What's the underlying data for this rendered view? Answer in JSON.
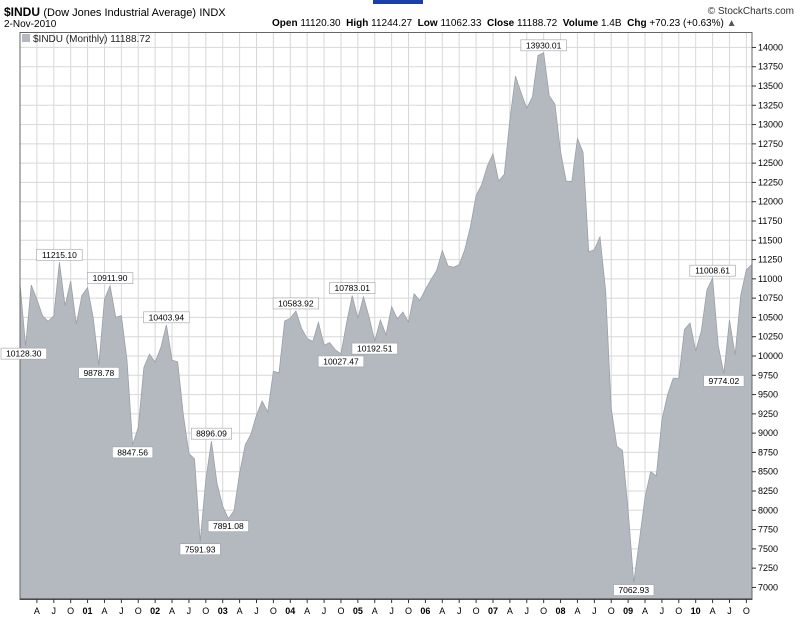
{
  "header": {
    "symbol": "$INDU",
    "name": "(Dow Jones Industrial Average)",
    "exchange": "INDX",
    "date": "2-Nov-2010",
    "logo": "© StockCharts.com",
    "open_label": "Open",
    "open_value": "11120.30",
    "high_label": "High",
    "high_value": "11244.27",
    "low_label": "Low",
    "low_value": "11062.33",
    "close_label": "Close",
    "close_value": "11188.72",
    "volume_label": "Volume",
    "volume_value": "1.4B",
    "chg_label": "Chg",
    "chg_value": "+70.23 (+0.63%)",
    "chg_arrow": "▲"
  },
  "colors": {
    "area": "#b4b9c0",
    "area_stroke": "#9aa0a8",
    "grid": "#d8d8d8",
    "topbar": "#1b3fa8"
  },
  "chart_data": {
    "type": "area",
    "legend": "$INDU (Monthly) 11188.72",
    "legend_position": "top-left",
    "ylim": [
      6850,
      14200
    ],
    "y_ticks": [
      7000,
      7250,
      7500,
      7750,
      8000,
      8250,
      8500,
      8750,
      9000,
      9250,
      9500,
      9750,
      10000,
      10250,
      10500,
      10750,
      11000,
      11250,
      11500,
      11750,
      12000,
      12250,
      12500,
      12750,
      13000,
      13250,
      13500,
      13750,
      14000
    ],
    "x_start": "2000-01",
    "x_ticks": [
      {
        "i": 3,
        "label": "A"
      },
      {
        "i": 6,
        "label": "J"
      },
      {
        "i": 9,
        "label": "O"
      },
      {
        "i": 12,
        "label": "01",
        "bold": true
      },
      {
        "i": 15,
        "label": "A"
      },
      {
        "i": 18,
        "label": "J"
      },
      {
        "i": 21,
        "label": "O"
      },
      {
        "i": 24,
        "label": "02",
        "bold": true
      },
      {
        "i": 27,
        "label": "A"
      },
      {
        "i": 30,
        "label": "J"
      },
      {
        "i": 33,
        "label": "O"
      },
      {
        "i": 36,
        "label": "03",
        "bold": true
      },
      {
        "i": 39,
        "label": "A"
      },
      {
        "i": 42,
        "label": "J"
      },
      {
        "i": 45,
        "label": "O"
      },
      {
        "i": 48,
        "label": "04",
        "bold": true
      },
      {
        "i": 51,
        "label": "A"
      },
      {
        "i": 54,
        "label": "J"
      },
      {
        "i": 57,
        "label": "O"
      },
      {
        "i": 60,
        "label": "05",
        "bold": true
      },
      {
        "i": 63,
        "label": "A"
      },
      {
        "i": 66,
        "label": "J"
      },
      {
        "i": 69,
        "label": "O"
      },
      {
        "i": 72,
        "label": "06",
        "bold": true
      },
      {
        "i": 75,
        "label": "A"
      },
      {
        "i": 78,
        "label": "J"
      },
      {
        "i": 81,
        "label": "O"
      },
      {
        "i": 84,
        "label": "07",
        "bold": true
      },
      {
        "i": 87,
        "label": "A"
      },
      {
        "i": 90,
        "label": "J"
      },
      {
        "i": 93,
        "label": "O"
      },
      {
        "i": 96,
        "label": "08",
        "bold": true
      },
      {
        "i": 99,
        "label": "A"
      },
      {
        "i": 102,
        "label": "J"
      },
      {
        "i": 105,
        "label": "O"
      },
      {
        "i": 108,
        "label": "09",
        "bold": true
      },
      {
        "i": 111,
        "label": "A"
      },
      {
        "i": 114,
        "label": "J"
      },
      {
        "i": 117,
        "label": "O"
      },
      {
        "i": 120,
        "label": "10",
        "bold": true
      },
      {
        "i": 123,
        "label": "A"
      },
      {
        "i": 126,
        "label": "J"
      },
      {
        "i": 129,
        "label": "O"
      }
    ],
    "values": [
      10940,
      10128,
      10920,
      10733,
      10522,
      10448,
      10522,
      11215,
      10650,
      10971,
      10415,
      10787,
      10887,
      10495,
      9879,
      10734,
      10912,
      10502,
      10523,
      9950,
      8848,
      9075,
      9851,
      10022,
      9920,
      10106,
      10404,
      9946,
      9925,
      9243,
      8737,
      8664,
      7592,
      8397,
      8896,
      8342,
      8054,
      7891,
      7992,
      8480,
      8850,
      8985,
      9234,
      9416,
      9275,
      9801,
      9782,
      10454,
      10488,
      10584,
      10358,
      10226,
      10188,
      10435,
      10140,
      10173,
      10080,
      10027,
      10428,
      10783,
      10490,
      10766,
      10504,
      10193,
      10467,
      10275,
      10641,
      10482,
      10569,
      10440,
      10806,
      10718,
      10865,
      10993,
      11109,
      11367,
      11168,
      11150,
      11185,
      11381,
      11679,
      12081,
      12221,
      12463,
      12622,
      12269,
      12354,
      13063,
      13628,
      13409,
      13212,
      13358,
      13896,
      13930,
      13372,
      13265,
      12650,
      12266,
      12263,
      12820,
      12638,
      11350,
      11378,
      11544,
      10850,
      9325,
      8829,
      8776,
      8001,
      7063,
      7609,
      8168,
      8500,
      8447,
      9172,
      9496,
      9712,
      9713,
      10345,
      10428,
      10067,
      10325,
      10857,
      11009,
      10137,
      9774,
      10466,
      10015,
      10788,
      11118,
      11189
    ],
    "annotations": [
      {
        "i": 1,
        "label": "10128.30",
        "dir": "left"
      },
      {
        "i": 7,
        "label": "11215.10",
        "dir": "up"
      },
      {
        "i": 14,
        "label": "9878.78",
        "dir": "down"
      },
      {
        "i": 16,
        "label": "10911.90",
        "dir": "up"
      },
      {
        "i": 20,
        "label": "8847.56",
        "dir": "down"
      },
      {
        "i": 26,
        "label": "10403.94",
        "dir": "up"
      },
      {
        "i": 32,
        "label": "7591.93",
        "dir": "down"
      },
      {
        "i": 34,
        "label": "8896.09",
        "dir": "up"
      },
      {
        "i": 37,
        "label": "7891.08",
        "dir": "down"
      },
      {
        "i": 49,
        "label": "10583.92",
        "dir": "up"
      },
      {
        "i": 57,
        "label": "10027.47",
        "dir": "down"
      },
      {
        "i": 59,
        "label": "10783.01",
        "dir": "up"
      },
      {
        "i": 63,
        "label": "10192.51",
        "dir": "down"
      },
      {
        "i": 93,
        "label": "13930.01",
        "dir": "up"
      },
      {
        "i": 109,
        "label": "7062.93",
        "dir": "down"
      },
      {
        "i": 123,
        "label": "11008.61",
        "dir": "up"
      },
      {
        "i": 125,
        "label": "9774.02",
        "dir": "down"
      }
    ]
  }
}
